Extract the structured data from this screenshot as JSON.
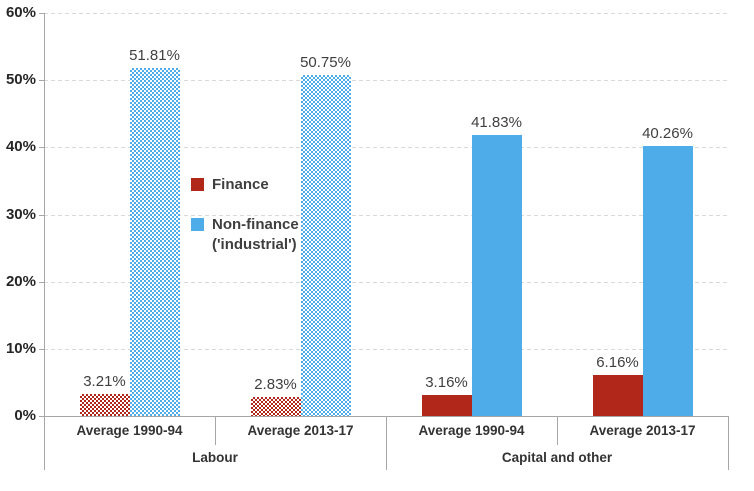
{
  "chart_data": {
    "type": "bar",
    "title": "",
    "xlabel": "",
    "ylabel": "",
    "ylim": [
      0,
      60
    ],
    "ytick_step": 10,
    "ytick_labels": [
      "0%",
      "10%",
      "20%",
      "30%",
      "40%",
      "50%",
      "60%"
    ],
    "grid": "dashed-horizontal",
    "legend_position": "inside-plot-left",
    "series_names": [
      "Finance",
      "Non-finance ('industrial')"
    ],
    "groups": [
      {
        "label": "Labour",
        "fill_style": "patterned",
        "categories": [
          {
            "label": "Average 1990-94",
            "values": {
              "finance": 3.21,
              "non_finance": 51.81
            },
            "value_labels": {
              "finance": "3.21%",
              "non_finance": "51.81%"
            }
          },
          {
            "label": "Average 2013-17",
            "values": {
              "finance": 2.83,
              "non_finance": 50.75
            },
            "value_labels": {
              "finance": "2.83%",
              "non_finance": "50.75%"
            }
          }
        ]
      },
      {
        "label": "Capital and other",
        "fill_style": "solid",
        "categories": [
          {
            "label": "Average 1990-94",
            "values": {
              "finance": 3.16,
              "non_finance": 41.83
            },
            "value_labels": {
              "finance": "3.16%",
              "non_finance": "41.83%"
            }
          },
          {
            "label": "Average 2013-17",
            "values": {
              "finance": 6.16,
              "non_finance": 40.26
            },
            "value_labels": {
              "finance": "6.16%",
              "non_finance": "40.26%"
            }
          }
        ]
      }
    ],
    "legend": {
      "finance_label": "Finance",
      "non_finance_label_line1": "Non-finance",
      "non_finance_label_line2": "('industrial')"
    },
    "colors": {
      "finance": "#B1271A",
      "non_finance": "#4EACE8",
      "gridline": "#D9D9D9",
      "axis_line": "#A6A6A6",
      "label_text": "#3F3F3F"
    }
  }
}
